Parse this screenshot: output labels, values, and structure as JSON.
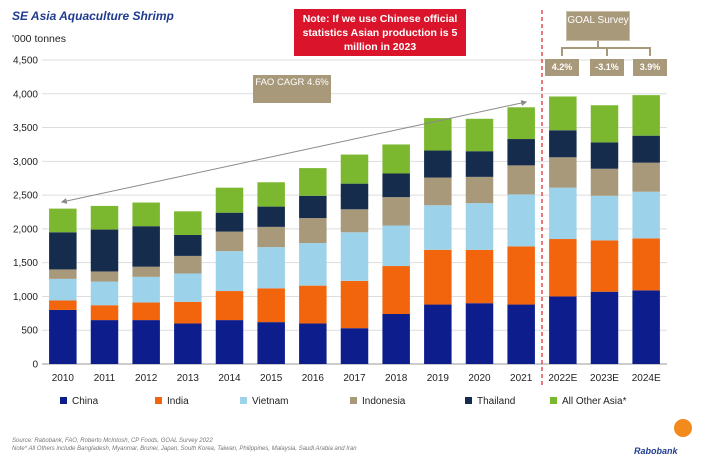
{
  "header": {
    "title": "SE Asia Aquaculture Shrimp",
    "units": "'000 tonnes"
  },
  "note": {
    "text": "Note: If we use Chinese official statistics Asian production is 5 million in 2023"
  },
  "goal": {
    "title": "GOAL Survey",
    "values": [
      "4.2%",
      "-3.1%",
      "3.9%"
    ]
  },
  "fao": {
    "text": "FAO CAGR 4.6%"
  },
  "source": {
    "line1": "Source: Rabobank, FAO, Roberto McIntosh, CP Foods, GOAL Survey 2022",
    "line2": "Note* All Others include Bangladesh, Myanmar, Brunei, Japan, South Korea, Taiwan, Philippines, Malaysia, Saudi Arabia and Iran"
  },
  "logo": {
    "text": "Rabobank"
  },
  "colors": {
    "China": "#0d1e8c",
    "India": "#f3650d",
    "Vietnam": "#9dd3ea",
    "Indonesia": "#a8997b",
    "Thailand": "#162c4c",
    "All Other Asia*": "#7cb82f",
    "divider": "#e02020",
    "arrow": "#8a8a8a"
  },
  "chart_data": {
    "type": "bar",
    "stacked": true,
    "title": "SE Asia Aquaculture Shrimp",
    "ylabel": "'000 tonnes",
    "ylim": [
      0,
      4500
    ],
    "yticks": [
      0,
      500,
      1000,
      1500,
      2000,
      2500,
      3000,
      3500,
      4000,
      4500
    ],
    "ytick_labels": [
      "0",
      "500",
      "1,000",
      "1,500",
      "2,000",
      "2,500",
      "3,000",
      "3,500",
      "4,000",
      "4,500"
    ],
    "grid": true,
    "categories": [
      "2010",
      "2011",
      "2012",
      "2013",
      "2014",
      "2015",
      "2016",
      "2017",
      "2018",
      "2019",
      "2020",
      "2021",
      "2022E",
      "2023E",
      "2024E"
    ],
    "series": [
      {
        "name": "China",
        "values": [
          800,
          650,
          650,
          600,
          650,
          620,
          600,
          530,
          740,
          880,
          900,
          880,
          1000,
          1070,
          1090
        ]
      },
      {
        "name": "India",
        "values": [
          140,
          220,
          260,
          320,
          430,
          500,
          560,
          700,
          710,
          810,
          790,
          860,
          850,
          760,
          770
        ]
      },
      {
        "name": "Vietnam",
        "values": [
          320,
          350,
          380,
          420,
          590,
          610,
          630,
          720,
          600,
          660,
          690,
          770,
          760,
          660,
          690
        ]
      },
      {
        "name": "Indonesia",
        "values": [
          140,
          150,
          150,
          260,
          290,
          300,
          370,
          340,
          420,
          410,
          390,
          430,
          450,
          400,
          430
        ]
      },
      {
        "name": "Thailand",
        "values": [
          550,
          620,
          600,
          310,
          280,
          300,
          330,
          380,
          350,
          400,
          380,
          390,
          400,
          390,
          400
        ]
      },
      {
        "name": "All Other Asia*",
        "values": [
          350,
          350,
          350,
          350,
          370,
          360,
          410,
          430,
          430,
          480,
          480,
          470,
          500,
          550,
          600
        ]
      }
    ],
    "legend_position": "bottom",
    "annotations": [
      "FAO CAGR 4.6%",
      "GOAL Survey",
      "4.2%",
      "-3.1%",
      "3.9%"
    ]
  }
}
